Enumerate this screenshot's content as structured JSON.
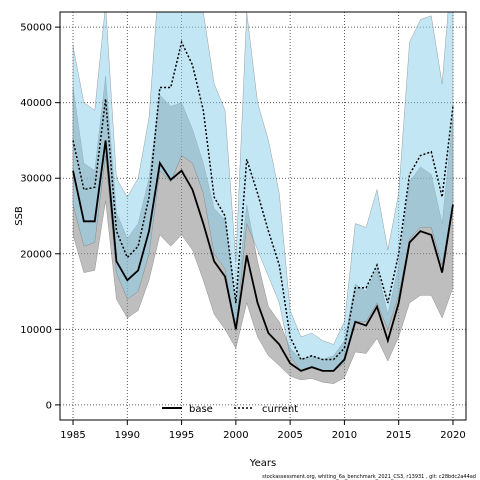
{
  "chart_data": {
    "type": "line",
    "xlabel": "Years",
    "ylabel": "SSB",
    "xlim": [
      1983.8,
      2021.2
    ],
    "ylim": [
      -2000,
      52000
    ],
    "x_ticks": [
      1985,
      1990,
      1995,
      2000,
      2005,
      2010,
      2015,
      2020
    ],
    "y_ticks": [
      0,
      10000,
      20000,
      30000,
      40000,
      50000
    ],
    "grid": true,
    "legend_position": "bottom-center",
    "footer": "stockassessment.org, whiting_6a_benchmark_2021_CS3, r13931 , git: c28bdc2a44ad",
    "x": [
      1985,
      1986,
      1987,
      1988,
      1989,
      1990,
      1991,
      1992,
      1993,
      1994,
      1995,
      1996,
      1997,
      1998,
      1999,
      2000,
      2001,
      2002,
      2003,
      2004,
      2005,
      2006,
      2007,
      2008,
      2009,
      2010,
      2011,
      2012,
      2013,
      2014,
      2015,
      2016,
      2017,
      2018,
      2019,
      2020
    ],
    "series": [
      {
        "name": "base",
        "color": "#000000",
        "band_color": "#888888",
        "values": [
          31000,
          24300,
          24300,
          35000,
          19000,
          16500,
          17800,
          23000,
          32000,
          29800,
          31000,
          28500,
          24000,
          19000,
          17000,
          10000,
          19800,
          13500,
          9500,
          8000,
          5500,
          4500,
          5000,
          4500,
          4500,
          6000,
          11000,
          10500,
          13000,
          8500,
          13500,
          21500,
          23000,
          22500,
          17500,
          26500
        ],
        "lower": [
          22500,
          17500,
          17800,
          27000,
          14000,
          11500,
          12500,
          16500,
          22500,
          21000,
          22500,
          20500,
          16500,
          12000,
          10000,
          7500,
          13500,
          9000,
          6500,
          5200,
          3800,
          3300,
          3500,
          3000,
          2800,
          3600,
          7000,
          6800,
          8800,
          5800,
          9000,
          13500,
          14500,
          14500,
          11500,
          15500
        ],
        "upper": [
          42000,
          32000,
          31000,
          43500,
          25500,
          22000,
          24000,
          30000,
          41000,
          39500,
          40000,
          36500,
          32000,
          26000,
          24500,
          13000,
          26500,
          19000,
          13000,
          11000,
          7500,
          6000,
          6500,
          6000,
          6500,
          8500,
          16000,
          15000,
          18000,
          12000,
          18500,
          29500,
          31500,
          30500,
          24000,
          38000
        ]
      },
      {
        "name": "current",
        "color": "#000000",
        "band_color": "#87ceeb",
        "values": [
          35000,
          28500,
          28800,
          40500,
          23000,
          19500,
          21000,
          27500,
          42000,
          42000,
          48000,
          45000,
          39000,
          27500,
          25000,
          13500,
          32500,
          28000,
          23000,
          18500,
          9000,
          6000,
          6500,
          6000,
          6000,
          7500,
          15500,
          15500,
          18500,
          13500,
          20000,
          30500,
          33000,
          33500,
          27500,
          39500
        ],
        "lower": [
          26500,
          21000,
          21500,
          33000,
          17500,
          14000,
          15000,
          20000,
          31000,
          29500,
          33000,
          32000,
          28000,
          20000,
          18000,
          10000,
          24000,
          20500,
          17000,
          13500,
          6500,
          4500,
          5000,
          4500,
          4500,
          5500,
          11000,
          11000,
          13500,
          10000,
          14500,
          22000,
          23500,
          23500,
          18500,
          27000
        ],
        "upper": [
          47500,
          40000,
          39000,
          53000,
          30000,
          27500,
          30000,
          38000,
          58000,
          60000,
          65000,
          58000,
          52000,
          42500,
          39000,
          19000,
          52000,
          40000,
          35000,
          28000,
          12500,
          9000,
          9500,
          8500,
          8000,
          11000,
          24000,
          23500,
          28500,
          20500,
          28000,
          48000,
          51000,
          51500,
          42500,
          60000
        ]
      }
    ]
  }
}
